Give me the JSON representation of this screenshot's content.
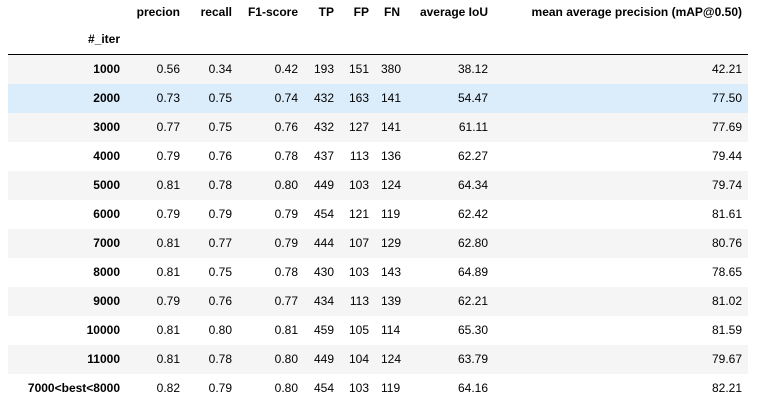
{
  "table": {
    "index_name": "#_iter",
    "columns": [
      "precion",
      "recall",
      "F1-score",
      "TP",
      "FP",
      "FN",
      "average IoU",
      "mean average precision (mAP@0.50)"
    ],
    "rows": [
      {
        "index": "1000",
        "cells": [
          "0.56",
          "0.34",
          "0.42",
          "193",
          "151",
          "380",
          "38.12",
          "42.21"
        ]
      },
      {
        "index": "2000",
        "cells": [
          "0.73",
          "0.75",
          "0.74",
          "432",
          "163",
          "141",
          "54.47",
          "77.50"
        ]
      },
      {
        "index": "3000",
        "cells": [
          "0.77",
          "0.75",
          "0.76",
          "432",
          "127",
          "141",
          "61.11",
          "77.69"
        ]
      },
      {
        "index": "4000",
        "cells": [
          "0.79",
          "0.76",
          "0.78",
          "437",
          "113",
          "136",
          "62.27",
          "79.44"
        ]
      },
      {
        "index": "5000",
        "cells": [
          "0.81",
          "0.78",
          "0.80",
          "449",
          "103",
          "124",
          "64.34",
          "79.74"
        ]
      },
      {
        "index": "6000",
        "cells": [
          "0.79",
          "0.79",
          "0.79",
          "454",
          "121",
          "119",
          "62.42",
          "81.61"
        ]
      },
      {
        "index": "7000",
        "cells": [
          "0.81",
          "0.77",
          "0.79",
          "444",
          "107",
          "129",
          "62.80",
          "80.76"
        ]
      },
      {
        "index": "8000",
        "cells": [
          "0.81",
          "0.75",
          "0.78",
          "430",
          "103",
          "143",
          "64.89",
          "78.65"
        ]
      },
      {
        "index": "9000",
        "cells": [
          "0.79",
          "0.76",
          "0.77",
          "434",
          "113",
          "139",
          "62.21",
          "81.02"
        ]
      },
      {
        "index": "10000",
        "cells": [
          "0.81",
          "0.80",
          "0.81",
          "459",
          "105",
          "114",
          "65.30",
          "81.59"
        ]
      },
      {
        "index": "11000",
        "cells": [
          "0.81",
          "0.78",
          "0.80",
          "449",
          "104",
          "124",
          "63.79",
          "79.67"
        ]
      },
      {
        "index": "7000<best<8000",
        "cells": [
          "0.82",
          "0.79",
          "0.80",
          "454",
          "103",
          "119",
          "64.16",
          "82.21"
        ]
      }
    ],
    "highlighted_row": 1,
    "colors": {
      "highlight": "#dbecfb",
      "stripe": "#f5f5f5",
      "background": "#ffffff"
    }
  }
}
